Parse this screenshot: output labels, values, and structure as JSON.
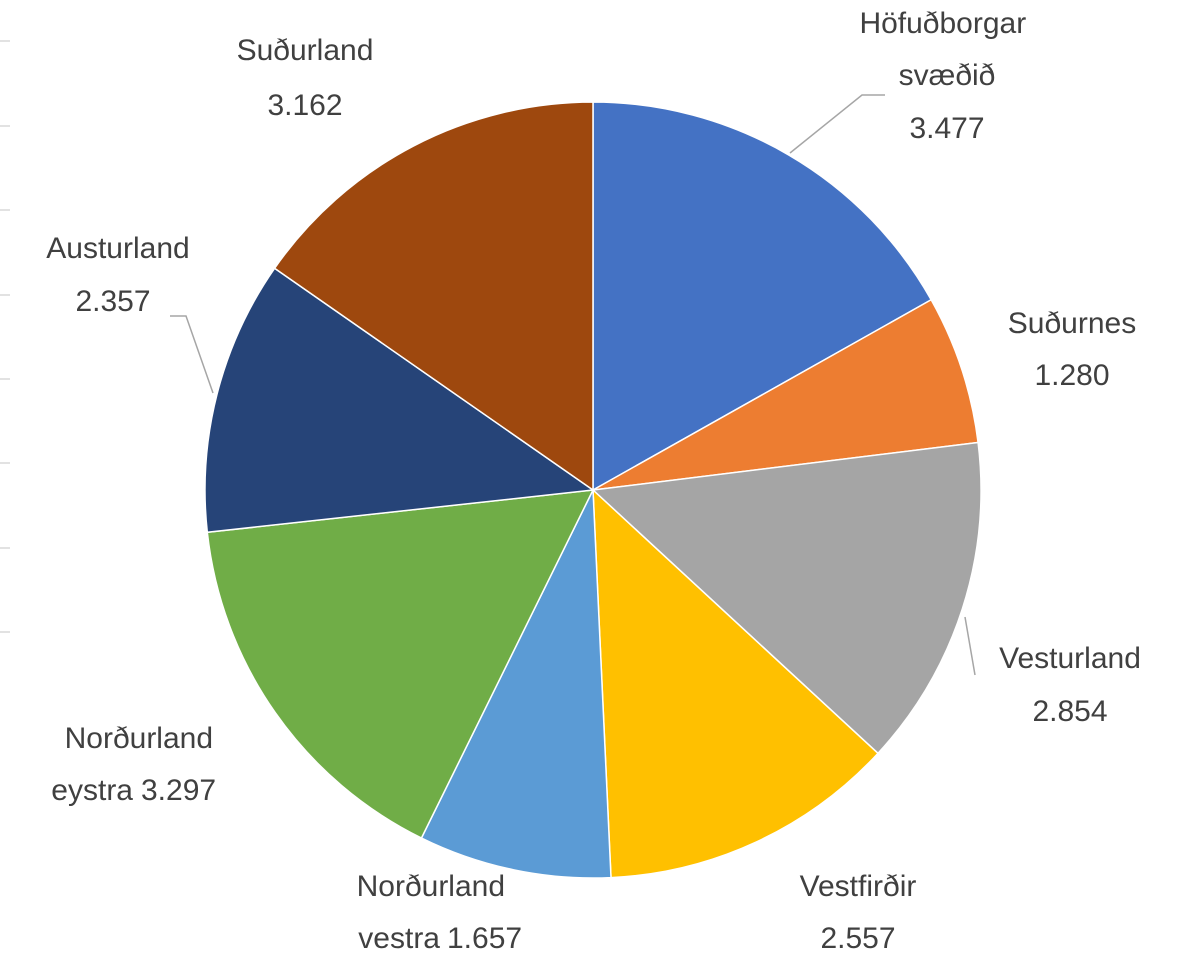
{
  "chart_data": {
    "type": "pie",
    "categories": [
      "Höfuðborgar svæðið",
      "Suðurnes",
      "Vesturland",
      "Vestfirðir",
      "Norðurland vestra",
      "Norðurland eystra",
      "Austurland",
      "Suðurland"
    ],
    "values": [
      3477,
      1280,
      2854,
      2557,
      1657,
      3297,
      2357,
      3162
    ],
    "value_labels": [
      "3.477",
      "1.280",
      "2.854",
      "2.557",
      "1.657",
      "3.297",
      "2.357",
      "3.162"
    ],
    "colors": [
      "#4472c4",
      "#ed7d31",
      "#a5a5a5",
      "#ffc000",
      "#5b9bd5",
      "#70ad47",
      "#264478",
      "#9e480e"
    ]
  }
}
